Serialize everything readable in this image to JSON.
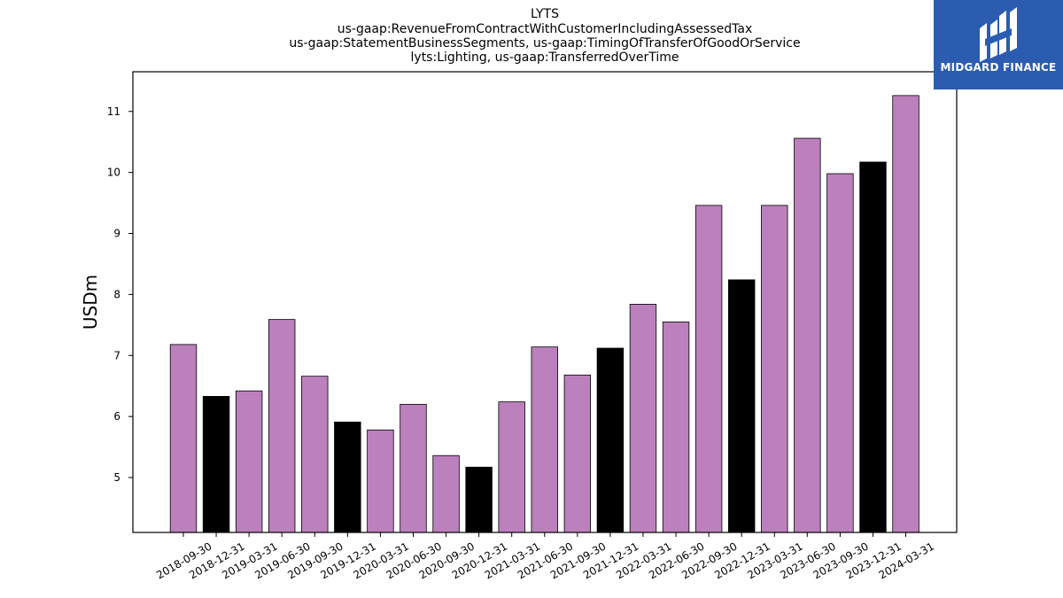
{
  "logo": {
    "text": "MIDGARD FINANCE",
    "color": "#2b5cb0"
  },
  "chart_data": {
    "type": "bar",
    "title": [
      "LYTS",
      "us-gaap:RevenueFromContractWithCustomerIncludingAssessedTax",
      "us-gaap:StatementBusinessSegments, us-gaap:TimingOfTransferOfGoodOrService",
      "lyts:Lighting, us-gaap:TransferredOverTime"
    ],
    "xlabel": "",
    "ylabel": "USDm",
    "ylim": [
      4.1,
      11.65
    ],
    "yticks": [
      5,
      6,
      7,
      8,
      9,
      10,
      11
    ],
    "grid": false,
    "categories": [
      "2018-09-30",
      "2018-12-31",
      "2019-03-31",
      "2019-06-30",
      "2019-09-30",
      "2019-12-31",
      "2020-03-31",
      "2020-06-30",
      "2020-09-30",
      "2020-12-31",
      "2021-03-31",
      "2021-06-30",
      "2021-09-30",
      "2021-12-31",
      "2022-03-31",
      "2022-06-30",
      "2022-09-30",
      "2022-12-31",
      "2023-03-31",
      "2023-06-30",
      "2023-09-30",
      "2023-12-31",
      "2024-03-31"
    ],
    "values": [
      7.18,
      6.33,
      6.42,
      7.59,
      6.66,
      5.91,
      5.78,
      6.2,
      5.36,
      5.17,
      6.24,
      7.14,
      6.68,
      7.12,
      7.84,
      7.55,
      9.46,
      8.24,
      9.46,
      10.56,
      9.98,
      10.17,
      11.26
    ],
    "bar_colors": [
      "#bc80bd",
      "#000000",
      "#bc80bd",
      "#bc80bd",
      "#bc80bd",
      "#000000",
      "#bc80bd",
      "#bc80bd",
      "#bc80bd",
      "#000000",
      "#bc80bd",
      "#bc80bd",
      "#bc80bd",
      "#000000",
      "#bc80bd",
      "#bc80bd",
      "#bc80bd",
      "#000000",
      "#bc80bd",
      "#bc80bd",
      "#bc80bd",
      "#000000",
      "#bc80bd"
    ],
    "colors": {
      "default": "#bc80bd",
      "highlight": "#000000",
      "edge": "#000000"
    }
  }
}
